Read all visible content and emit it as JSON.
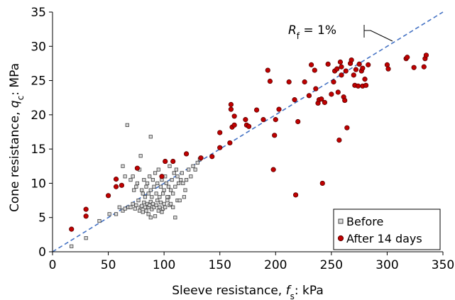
{
  "chart_data": {
    "type": "scatter",
    "xlabel": {
      "prefix": "Sleeve resistance, ",
      "var": "f",
      "sub": "s",
      "suffix": ": kPa"
    },
    "ylabel": {
      "prefix": "Cone resistance, ",
      "var": "q",
      "sub": "c",
      "suffix": ": MPa"
    },
    "xlim": [
      0,
      350
    ],
    "ylim": [
      0,
      35
    ],
    "xticks": [
      "0",
      "50",
      "100",
      "150",
      "200",
      "250",
      "300",
      "350"
    ],
    "yticks": [
      "0",
      "5",
      "10",
      "15",
      "20",
      "25",
      "30",
      "35"
    ],
    "grid": false,
    "legend_position": "bottom-right",
    "reference_line": {
      "label_var": "R",
      "label_sub": "f",
      "label_rest": " = 1%",
      "x": [
        0,
        350
      ],
      "y": [
        0,
        35
      ],
      "color": "#4472c4",
      "style": "dashed"
    },
    "series": [
      {
        "name": "Before",
        "marker": "square",
        "color": "#d9d9d9",
        "edge": "#404040",
        "points": [
          [
            17,
            0.8
          ],
          [
            30,
            2
          ],
          [
            42,
            4.5
          ],
          [
            51,
            5.5
          ],
          [
            57,
            5.5
          ],
          [
            60,
            6.5
          ],
          [
            63,
            6
          ],
          [
            65,
            6.3
          ],
          [
            67,
            18.5
          ],
          [
            68,
            6.5
          ],
          [
            70,
            6.5
          ],
          [
            72,
            7
          ],
          [
            74,
            6.3
          ],
          [
            75,
            6.8
          ],
          [
            77,
            7.5
          ],
          [
            78,
            6
          ],
          [
            79,
            6.5
          ],
          [
            80,
            6.7
          ],
          [
            81,
            5.8
          ],
          [
            82,
            7.2
          ],
          [
            83,
            6.5
          ],
          [
            84,
            6
          ],
          [
            85,
            7
          ],
          [
            86,
            6.5
          ],
          [
            86,
            5.5
          ],
          [
            87,
            6.8
          ],
          [
            88,
            7.3
          ],
          [
            88,
            5
          ],
          [
            89,
            6.2
          ],
          [
            90,
            7
          ],
          [
            91,
            6.5
          ],
          [
            92,
            5.2
          ],
          [
            93,
            6.8
          ],
          [
            94,
            7.5
          ],
          [
            95,
            6
          ],
          [
            96,
            6.5
          ],
          [
            97,
            7.2
          ],
          [
            98,
            5.8
          ],
          [
            99,
            6.3
          ],
          [
            100,
            7
          ],
          [
            101,
            6.5
          ],
          [
            103,
            7.5
          ],
          [
            104,
            8
          ],
          [
            105,
            6.8
          ],
          [
            106,
            7
          ],
          [
            108,
            6.5
          ],
          [
            110,
            5
          ],
          [
            112,
            7.5
          ],
          [
            70,
            10.5
          ],
          [
            72,
            11
          ],
          [
            73,
            9
          ],
          [
            75,
            9.5
          ],
          [
            76,
            10
          ],
          [
            78,
            12
          ],
          [
            79,
            14
          ],
          [
            80,
            9
          ],
          [
            81,
            8.5
          ],
          [
            82,
            10.5
          ],
          [
            83,
            8
          ],
          [
            84,
            9.5
          ],
          [
            85,
            10
          ],
          [
            86,
            8.5
          ],
          [
            87,
            11
          ],
          [
            88,
            9
          ],
          [
            89,
            8
          ],
          [
            90,
            10.5
          ],
          [
            91,
            9.5
          ],
          [
            92,
            11.5
          ],
          [
            93,
            8.5
          ],
          [
            94,
            10
          ],
          [
            95,
            12
          ],
          [
            96,
            8
          ],
          [
            97,
            9.5
          ],
          [
            98,
            10.5
          ],
          [
            99,
            8.5
          ],
          [
            100,
            9
          ],
          [
            101,
            11
          ],
          [
            102,
            10
          ],
          [
            103,
            8
          ],
          [
            104,
            9.5
          ],
          [
            105,
            12.5
          ],
          [
            106,
            9
          ],
          [
            107,
            10.5
          ],
          [
            108,
            8.5
          ],
          [
            109,
            11.5
          ],
          [
            110,
            9.5
          ],
          [
            111,
            12
          ],
          [
            112,
            11
          ],
          [
            113,
            10
          ],
          [
            114,
            7.5
          ],
          [
            115,
            10.5
          ],
          [
            116,
            11.5
          ],
          [
            117,
            10
          ],
          [
            118,
            8
          ],
          [
            119,
            9
          ],
          [
            120,
            10.5
          ],
          [
            122,
            12
          ],
          [
            124,
            11
          ],
          [
            126,
            12.5
          ],
          [
            128,
            12
          ],
          [
            130,
            13
          ],
          [
            132,
            13.5
          ],
          [
            88,
            16.8
          ],
          [
            63,
            12.5
          ],
          [
            65,
            11
          ]
        ]
      },
      {
        "name": "After 14 days",
        "marker": "circle",
        "color": "#c00000",
        "edge": "#5a0000",
        "points": [
          [
            17,
            3.3
          ],
          [
            30,
            5.2
          ],
          [
            30,
            6.2
          ],
          [
            50,
            8.2
          ],
          [
            57,
            9.5
          ],
          [
            57,
            10.6
          ],
          [
            62,
            9.7
          ],
          [
            76,
            12.2
          ],
          [
            98,
            11
          ],
          [
            101,
            13.2
          ],
          [
            108,
            13.2
          ],
          [
            120,
            14.3
          ],
          [
            133,
            13.7
          ],
          [
            143,
            13.9
          ],
          [
            150,
            15.2
          ],
          [
            150,
            17.4
          ],
          [
            159,
            15.9
          ],
          [
            160,
            20.8
          ],
          [
            160,
            21.5
          ],
          [
            161,
            18.2
          ],
          [
            163,
            19.8
          ],
          [
            163,
            18.5
          ],
          [
            173,
            19.3
          ],
          [
            174,
            18.5
          ],
          [
            176,
            18.3
          ],
          [
            183,
            20.7
          ],
          [
            189,
            19.3
          ],
          [
            193,
            26.5
          ],
          [
            195,
            24.9
          ],
          [
            198,
            12
          ],
          [
            199,
            17
          ],
          [
            200,
            19.3
          ],
          [
            203,
            20.8
          ],
          [
            212,
            24.8
          ],
          [
            217,
            22.2
          ],
          [
            218,
            8.3
          ],
          [
            220,
            19
          ],
          [
            226,
            24.8
          ],
          [
            230,
            22.8
          ],
          [
            232,
            27.3
          ],
          [
            235,
            26.5
          ],
          [
            236,
            23.8
          ],
          [
            238,
            21.7
          ],
          [
            239,
            22.2
          ],
          [
            241,
            22.3
          ],
          [
            242,
            10
          ],
          [
            244,
            21.8
          ],
          [
            247,
            27.4
          ],
          [
            250,
            23
          ],
          [
            252,
            24.8
          ],
          [
            253,
            26.4
          ],
          [
            255,
            26.7
          ],
          [
            256,
            23.3
          ],
          [
            257,
            16.3
          ],
          [
            258,
            27.7
          ],
          [
            259,
            25.8
          ],
          [
            259,
            27
          ],
          [
            261,
            22.6
          ],
          [
            262,
            22.1
          ],
          [
            263,
            26.4
          ],
          [
            264,
            18.1
          ],
          [
            267,
            27.5
          ],
          [
            268,
            28
          ],
          [
            270,
            25.8
          ],
          [
            271,
            24.3
          ],
          [
            272,
            26.6
          ],
          [
            274,
            24.2
          ],
          [
            275,
            27.4
          ],
          [
            277,
            26.4
          ],
          [
            278,
            24.2
          ],
          [
            278,
            26.8
          ],
          [
            280,
            25.2
          ],
          [
            281,
            24.3
          ],
          [
            283,
            27.3
          ],
          [
            300,
            27.3
          ],
          [
            301,
            26.7
          ],
          [
            317,
            28.2
          ],
          [
            318,
            28.4
          ],
          [
            324,
            26.9
          ],
          [
            333,
            27
          ],
          [
            334,
            28.2
          ],
          [
            335,
            28.7
          ]
        ]
      }
    ]
  }
}
